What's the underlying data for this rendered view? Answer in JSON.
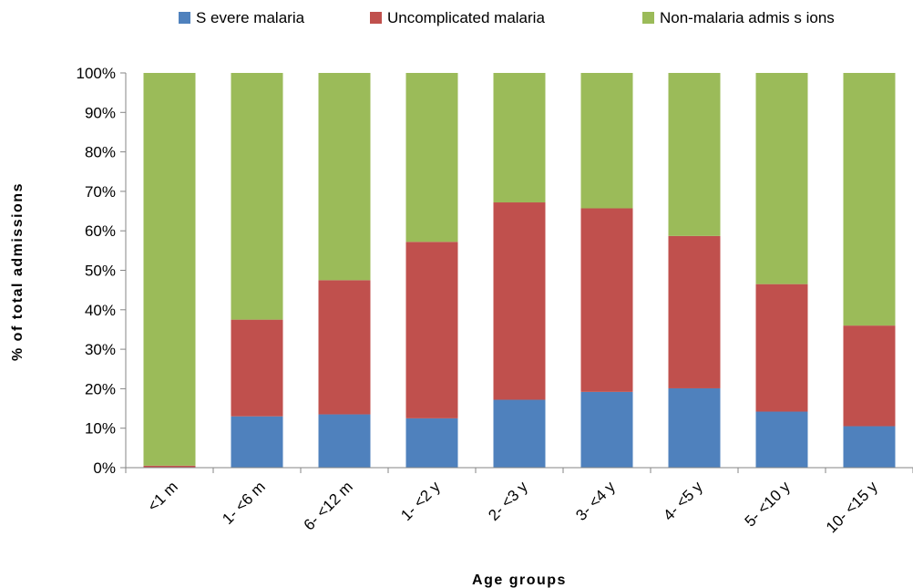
{
  "chart_data": {
    "type": "bar",
    "stacked": true,
    "categories": [
      "<1 m",
      "1- <6 m",
      "6- <12 m",
      "1- <2 y",
      "2- <3 y",
      "3- <4 y",
      "4- <5 y",
      "5- <10 y",
      "10- <15 y"
    ],
    "series": [
      {
        "name": "S evere malaria",
        "color": "#4F81BD",
        "values": [
          0,
          13,
          13.5,
          12.5,
          17.2,
          19.2,
          20.1,
          14.2,
          10.5
        ]
      },
      {
        "name": "Uncomplicated malaria",
        "color": "#C0504D",
        "values": [
          0.5,
          24.5,
          34,
          44.7,
          50,
          46.5,
          38.6,
          32.3,
          25.5
        ]
      },
      {
        "name": "Non-malaria admis s ions",
        "color": "#9BBB59",
        "values": [
          99.5,
          62.5,
          52.5,
          42.8,
          32.8,
          34.3,
          41.3,
          53.5,
          64
        ]
      }
    ],
    "xlabel": "Age groups",
    "ylabel": "% of total admissions",
    "ylim": [
      0,
      100
    ],
    "yticks": [
      "0%",
      "10%",
      "20%",
      "30%",
      "40%",
      "50%",
      "60%",
      "70%",
      "80%",
      "90%",
      "100%"
    ],
    "legend_position": "top",
    "grid": false
  }
}
